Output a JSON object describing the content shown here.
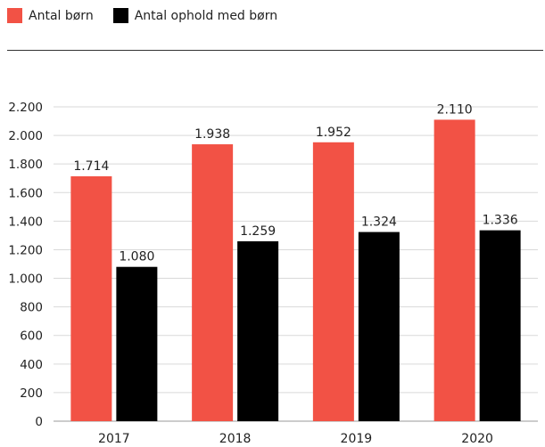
{
  "chart_data": {
    "type": "bar",
    "categories": [
      "2017",
      "2018",
      "2019",
      "2020"
    ],
    "series": [
      {
        "name": "Antal børn",
        "color": "#f25245",
        "values": [
          1714,
          1938,
          1952,
          2110
        ],
        "labels": [
          "1.714",
          "1.938",
          "1.952",
          "2.110"
        ]
      },
      {
        "name": "Antal ophold med børn",
        "color": "#000000",
        "values": [
          1080,
          1259,
          1324,
          1336
        ],
        "labels": [
          "1.080",
          "1.259",
          "1.324",
          "1.336"
        ]
      }
    ],
    "yticks": [
      0,
      200,
      400,
      600,
      800,
      1000,
      1200,
      1400,
      1600,
      1800,
      2000,
      2200
    ],
    "ytick_labels": [
      "0",
      "200",
      "400",
      "600",
      "800",
      "1.000",
      "1.200",
      "1.400",
      "1.600",
      "1.800",
      "2.000",
      "2.200"
    ],
    "ylim": [
      0,
      2200
    ],
    "grid": true,
    "legend_position": "top-left"
  }
}
